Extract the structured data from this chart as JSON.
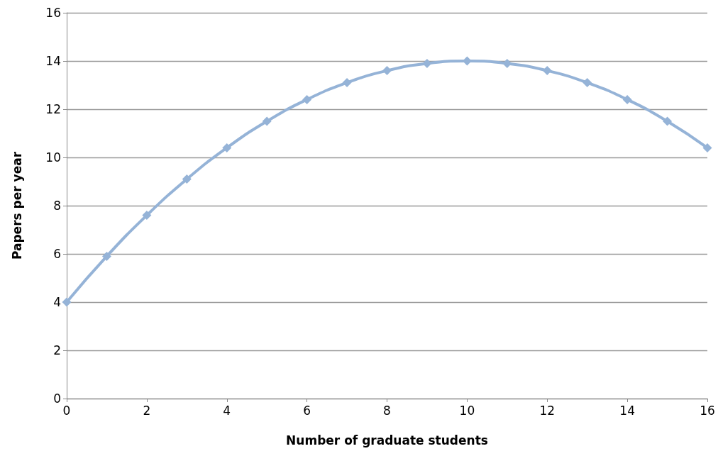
{
  "chart_data": {
    "type": "line",
    "xlabel": "Number of graduate students",
    "ylabel": "Papers per year",
    "x": [
      0,
      1,
      2,
      3,
      4,
      5,
      6,
      7,
      8,
      9,
      10,
      11,
      12,
      13,
      14,
      15,
      16
    ],
    "series": [
      {
        "color": "#95b3d7",
        "values": [
          4,
          5.9,
          7.6,
          9.1,
          10.4,
          11.5,
          12.4,
          13.1,
          13.6,
          13.9,
          14,
          13.9,
          13.6,
          13.1,
          12.4,
          11.5,
          10.4
        ]
      }
    ],
    "xlim": [
      0,
      16
    ],
    "xticks": [
      0,
      2,
      4,
      6,
      8,
      10,
      12,
      14,
      16
    ],
    "ylim": [
      0,
      16
    ],
    "yticks": [
      0,
      2,
      4,
      6,
      8,
      10,
      12,
      14,
      16
    ],
    "grid": "y",
    "marker": "diamond",
    "line_style": "solid"
  }
}
